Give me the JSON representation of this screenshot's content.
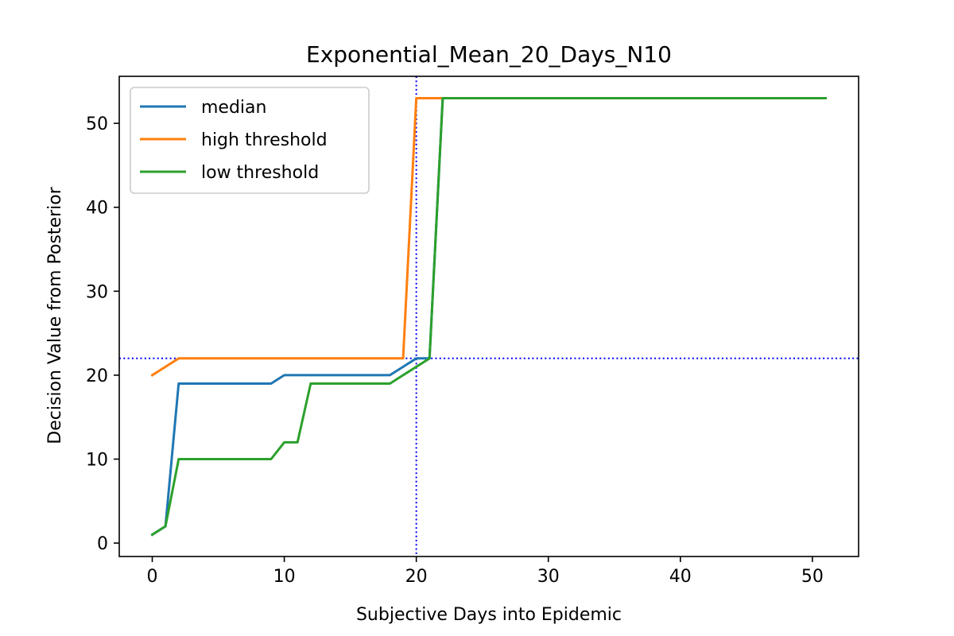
{
  "chart_data": {
    "type": "line",
    "title": "Exponential_Mean_20_Days_N10",
    "xlabel": "Subjective Days into Epidemic",
    "ylabel": "Decision Value from Posterior",
    "xlim": [
      -2.5,
      53.5
    ],
    "ylim": [
      -1.6,
      55.6
    ],
    "xticks": [
      0,
      10,
      20,
      30,
      40,
      50
    ],
    "yticks": [
      0,
      10,
      20,
      30,
      40,
      50
    ],
    "grid": false,
    "legend_position": "upper-left",
    "series": [
      {
        "name": "median",
        "color": "#1f77b4",
        "x": [
          0,
          1,
          2,
          3,
          4,
          5,
          6,
          7,
          8,
          9,
          10,
          11,
          12,
          13,
          14,
          15,
          16,
          17,
          18,
          19,
          20,
          21,
          22,
          23,
          24,
          25,
          26,
          27,
          28,
          29,
          30,
          31,
          32,
          33,
          34,
          35,
          36,
          37,
          38,
          39,
          40,
          41,
          42,
          43,
          44,
          45,
          46,
          47,
          48,
          49,
          50,
          51
        ],
        "y": [
          1,
          2,
          19,
          19,
          19,
          19,
          19,
          19,
          19,
          19,
          20,
          20,
          20,
          20,
          20,
          20,
          20,
          20,
          20,
          21,
          22,
          22,
          53,
          53,
          53,
          53,
          53,
          53,
          53,
          53,
          53,
          53,
          53,
          53,
          53,
          53,
          53,
          53,
          53,
          53,
          53,
          53,
          53,
          53,
          53,
          53,
          53,
          53,
          53,
          53,
          53,
          53
        ]
      },
      {
        "name": "high threshold",
        "color": "#ff7f0e",
        "x": [
          0,
          1,
          2,
          3,
          4,
          5,
          6,
          7,
          8,
          9,
          10,
          11,
          12,
          13,
          14,
          15,
          16,
          17,
          18,
          19,
          20,
          21,
          22,
          23,
          24,
          25,
          26,
          27,
          28,
          29,
          30,
          31,
          32,
          33,
          34,
          35,
          36,
          37,
          38,
          39,
          40,
          41,
          42,
          43,
          44,
          45,
          46,
          47,
          48,
          49,
          50,
          51
        ],
        "y": [
          20,
          21,
          22,
          22,
          22,
          22,
          22,
          22,
          22,
          22,
          22,
          22,
          22,
          22,
          22,
          22,
          22,
          22,
          22,
          22,
          53,
          53,
          53,
          53,
          53,
          53,
          53,
          53,
          53,
          53,
          53,
          53,
          53,
          53,
          53,
          53,
          53,
          53,
          53,
          53,
          53,
          53,
          53,
          53,
          53,
          53,
          53,
          53,
          53,
          53,
          53,
          53
        ]
      },
      {
        "name": "low threshold",
        "color": "#2ca02c",
        "x": [
          0,
          1,
          2,
          3,
          4,
          5,
          6,
          7,
          8,
          9,
          10,
          11,
          12,
          13,
          14,
          15,
          16,
          17,
          18,
          19,
          20,
          21,
          22,
          23,
          24,
          25,
          26,
          27,
          28,
          29,
          30,
          31,
          32,
          33,
          34,
          35,
          36,
          37,
          38,
          39,
          40,
          41,
          42,
          43,
          44,
          45,
          46,
          47,
          48,
          49,
          50,
          51
        ],
        "y": [
          1,
          2,
          10,
          10,
          10,
          10,
          10,
          10,
          10,
          10,
          12,
          12,
          19,
          19,
          19,
          19,
          19,
          19,
          19,
          20,
          21,
          22,
          53,
          53,
          53,
          53,
          53,
          53,
          53,
          53,
          53,
          53,
          53,
          53,
          53,
          53,
          53,
          53,
          53,
          53,
          53,
          53,
          53,
          53,
          53,
          53,
          53,
          53,
          53,
          53,
          53,
          53
        ]
      }
    ],
    "reference_lines": [
      {
        "orientation": "vertical",
        "value": 20,
        "color": "#0000ff",
        "style": "dotted"
      },
      {
        "orientation": "horizontal",
        "value": 22,
        "color": "#0000ff",
        "style": "dotted"
      }
    ]
  }
}
